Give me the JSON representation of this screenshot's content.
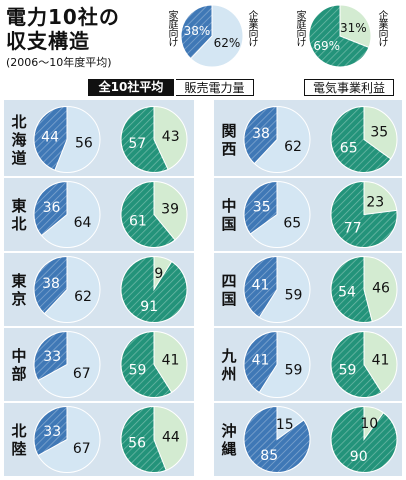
{
  "title_line1": "電力10社の",
  "title_line2": "収支構造",
  "subtitle": "(2006〜10年度平均)",
  "legend": {
    "all": "全10社平均",
    "sales": "販売電力量",
    "profit": "電気事業利益"
  },
  "slice_labels": {
    "household": "家庭向け",
    "enterprise": "企業向け"
  },
  "colors": {
    "household_sales": "#3f78b6",
    "enterprise_sales": "#d4e6f3",
    "household_profit": "#23937a",
    "enterprise_profit": "#d3ebd1",
    "panel_bg": "#d6e3ee",
    "hatch_line": "#ffffff"
  },
  "chart_data": {
    "type": "pie",
    "title": "電力10社の収支構造",
    "subtitle": "(2006〜10年度平均)",
    "series_names": [
      "販売電力量",
      "電気事業利益"
    ],
    "categories": [
      "家庭向け",
      "企業向け"
    ],
    "average": {
      "name": "全10社平均",
      "sales": [
        38,
        62
      ],
      "profit": [
        69,
        31
      ]
    },
    "companies": [
      {
        "name": "北海道",
        "sales": [
          44,
          56
        ],
        "profit": [
          57,
          43
        ]
      },
      {
        "name": "東北",
        "sales": [
          36,
          64
        ],
        "profit": [
          61,
          39
        ]
      },
      {
        "name": "東京",
        "sales": [
          38,
          62
        ],
        "profit": [
          91,
          9
        ]
      },
      {
        "name": "中部",
        "sales": [
          33,
          67
        ],
        "profit": [
          59,
          41
        ]
      },
      {
        "name": "北陸",
        "sales": [
          33,
          67
        ],
        "profit": [
          56,
          44
        ]
      },
      {
        "name": "関西",
        "sales": [
          38,
          62
        ],
        "profit": [
          65,
          35
        ]
      },
      {
        "name": "中国",
        "sales": [
          35,
          65
        ],
        "profit": [
          77,
          23
        ]
      },
      {
        "name": "四国",
        "sales": [
          41,
          59
        ],
        "profit": [
          54,
          46
        ]
      },
      {
        "name": "九州",
        "sales": [
          41,
          59
        ],
        "profit": [
          59,
          41
        ]
      },
      {
        "name": "沖縄",
        "sales": [
          85,
          15
        ],
        "profit": [
          90,
          10
        ]
      }
    ]
  }
}
